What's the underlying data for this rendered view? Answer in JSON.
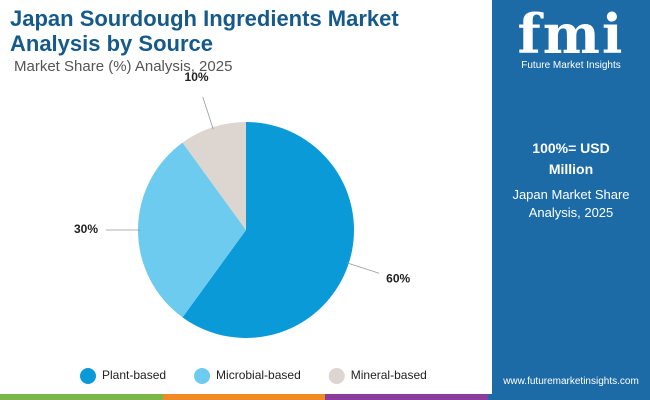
{
  "chart_data": {
    "type": "pie",
    "title": "Japan Sourdough Ingredients Market Analysis by Source",
    "subtitle": "Market Share (%) Analysis, 2025",
    "categories": [
      "Plant-based",
      "Microbial-based",
      "Mineral-based"
    ],
    "values": [
      60,
      30,
      10
    ],
    "value_labels": [
      "60%",
      "30%",
      "10%"
    ],
    "colors": [
      "#0b9ad8",
      "#6ccbef",
      "#ddd5cf"
    ],
    "legend": "bottom"
  },
  "panel": {
    "logo": "fmi",
    "brand": "Future Market Insights",
    "unit": "100%= USD Million",
    "note": "Japan Market Share Analysis, 2025",
    "website": "www.futuremarketinsights.com"
  }
}
